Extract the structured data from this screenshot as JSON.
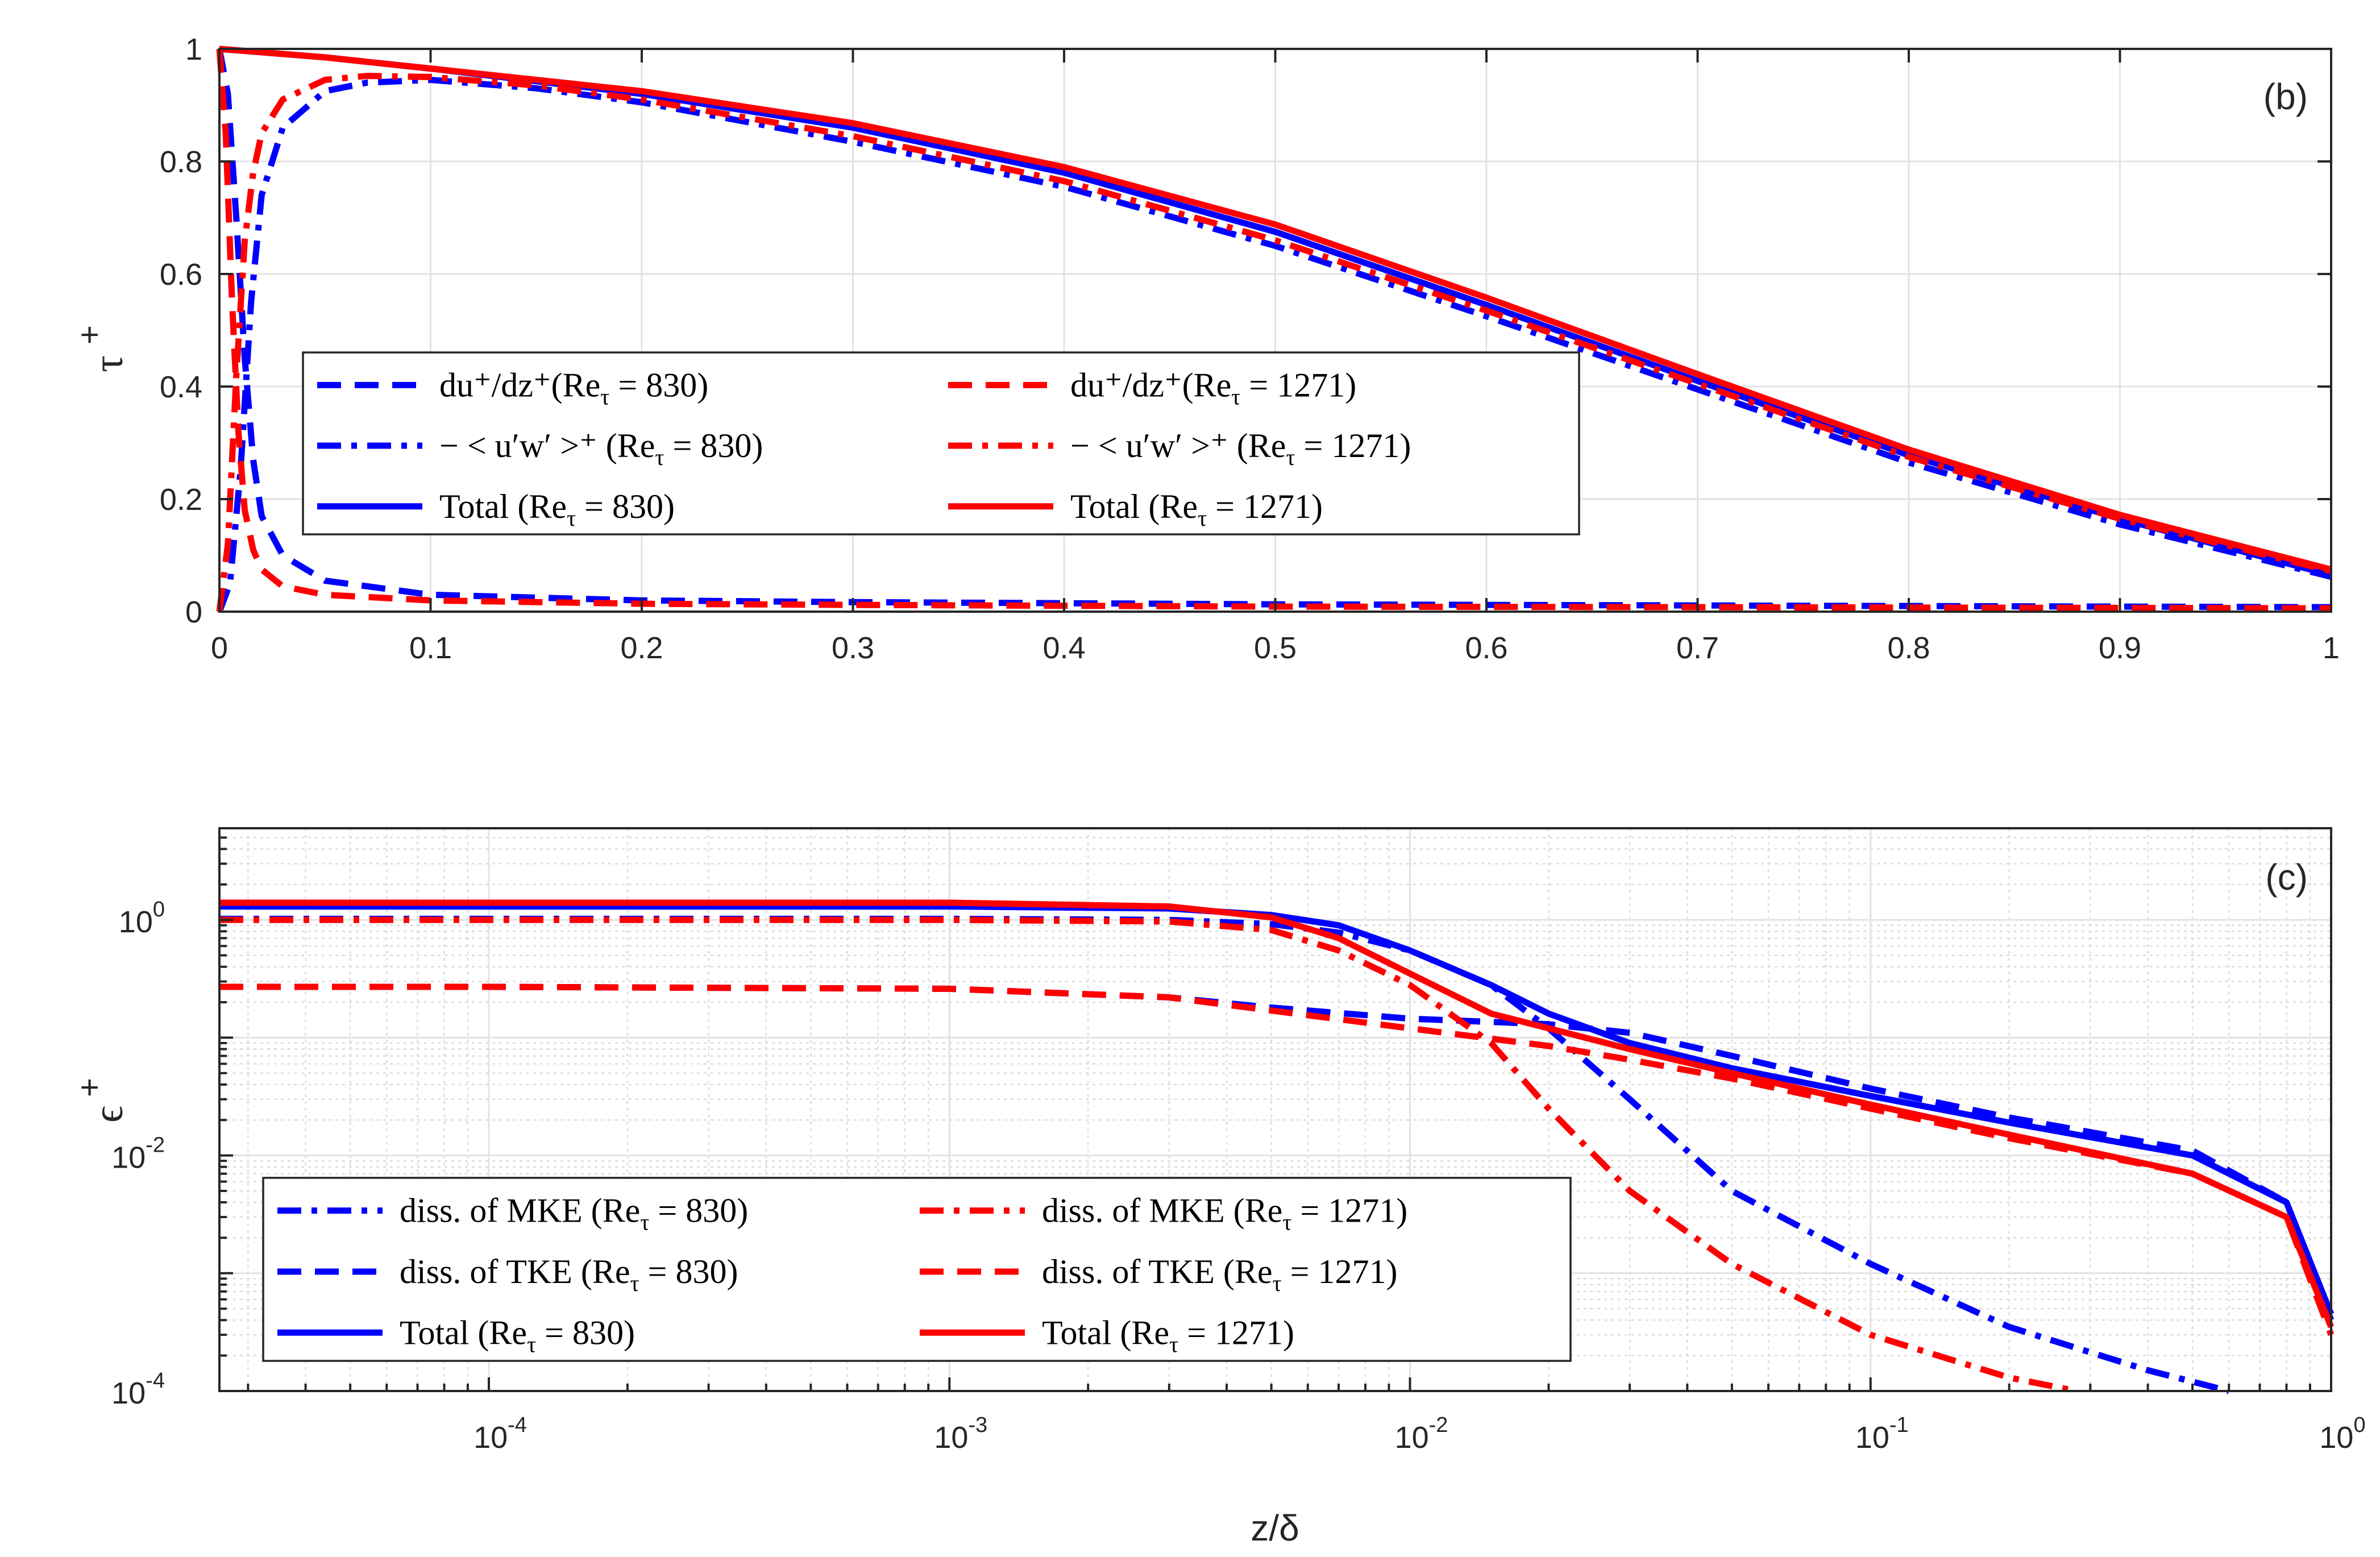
{
  "colors": {
    "re830": "#0000ff",
    "re1271": "#ff0000",
    "axis": "#262626",
    "grid": "#e3e3e3"
  },
  "chart_data": [
    {
      "panel": "(b)",
      "type": "line",
      "ylabel": "τ",
      "ylabel_sup": "+",
      "xlim": [
        0,
        1
      ],
      "ylim": [
        0,
        1
      ],
      "xticks": [
        0,
        0.1,
        0.2,
        0.3,
        0.4,
        0.5,
        0.6,
        0.7,
        0.8,
        0.9,
        1
      ],
      "xticklabels": [
        "0",
        "0.1",
        "0.2",
        "0.3",
        "0.4",
        "0.5",
        "0.6",
        "0.7",
        "0.8",
        "0.9",
        "1"
      ],
      "yticks": [
        0,
        0.2,
        0.4,
        0.6,
        0.8,
        1
      ],
      "yticklabels": [
        "0",
        "0.2",
        "0.4",
        "0.6",
        "0.8",
        "1"
      ],
      "grid": true,
      "legend_position": "center-left",
      "series": [
        {
          "name": "du⁺/dz⁺ (Re_τ = 830)",
          "legend_main": "du⁺/dz⁺(Re",
          "legend_tail": " = 830)",
          "color": "#0000ff",
          "style": "dashed",
          "x": [
            0,
            0.004,
            0.008,
            0.012,
            0.016,
            0.02,
            0.03,
            0.05,
            0.1,
            0.2,
            0.3,
            0.5,
            0.7,
            1.0
          ],
          "y": [
            1.0,
            0.92,
            0.7,
            0.45,
            0.27,
            0.17,
            0.1,
            0.055,
            0.03,
            0.02,
            0.017,
            0.013,
            0.011,
            0.008
          ]
        },
        {
          "name": "-<u'w'>⁺ (Re_τ = 830)",
          "legend_main": "− < u′w′ >⁺ (Re",
          "legend_tail": " = 830)",
          "color": "#0000ff",
          "style": "dashdot",
          "x": [
            0,
            0.005,
            0.01,
            0.015,
            0.02,
            0.03,
            0.05,
            0.07,
            0.1,
            0.15,
            0.2,
            0.3,
            0.4,
            0.5,
            0.6,
            0.7,
            0.8,
            0.9,
            1.0
          ],
          "y": [
            0.0,
            0.05,
            0.25,
            0.55,
            0.74,
            0.86,
            0.925,
            0.94,
            0.945,
            0.93,
            0.905,
            0.835,
            0.755,
            0.65,
            0.525,
            0.395,
            0.265,
            0.155,
            0.062
          ]
        },
        {
          "name": "Total (Re_τ = 830)",
          "legend_main": "Total (Re",
          "legend_tail": " = 830)",
          "color": "#0000ff",
          "style": "solid",
          "x": [
            0,
            0.05,
            0.1,
            0.2,
            0.3,
            0.4,
            0.5,
            0.6,
            0.7,
            0.8,
            0.9,
            1.0
          ],
          "y": [
            1.0,
            0.985,
            0.965,
            0.92,
            0.86,
            0.78,
            0.675,
            0.545,
            0.41,
            0.278,
            0.165,
            0.065
          ]
        },
        {
          "name": "du⁺/dz⁺ (Re_τ = 1271)",
          "legend_main": "du⁺/dz⁺(Re",
          "legend_tail": " = 1271)",
          "color": "#ff0000",
          "style": "dashed",
          "x": [
            0,
            0.003,
            0.006,
            0.009,
            0.012,
            0.016,
            0.02,
            0.03,
            0.05,
            0.1,
            0.2,
            0.3,
            0.5,
            0.7,
            1.0
          ],
          "y": [
            1.0,
            0.85,
            0.55,
            0.32,
            0.18,
            0.11,
            0.075,
            0.045,
            0.03,
            0.02,
            0.014,
            0.012,
            0.009,
            0.008,
            0.006
          ]
        },
        {
          "name": "-<u'w'>⁺ (Re_τ = 1271)",
          "legend_main": "− < u′w′ >⁺ (Re",
          "legend_tail": " = 1271)",
          "color": "#ff0000",
          "style": "dashdot",
          "x": [
            0,
            0.004,
            0.008,
            0.012,
            0.016,
            0.02,
            0.03,
            0.05,
            0.07,
            0.1,
            0.15,
            0.2,
            0.3,
            0.4,
            0.5,
            0.6,
            0.7,
            0.8,
            0.9,
            1.0
          ],
          "y": [
            0.0,
            0.12,
            0.42,
            0.66,
            0.78,
            0.85,
            0.91,
            0.945,
            0.952,
            0.95,
            0.935,
            0.91,
            0.845,
            0.765,
            0.66,
            0.535,
            0.405,
            0.275,
            0.165,
            0.072
          ]
        },
        {
          "name": "Total (Re_τ = 1271)",
          "legend_main": "Total (Re",
          "legend_tail": " = 1271)",
          "color": "#ff0000",
          "style": "solid",
          "x": [
            0,
            0.05,
            0.1,
            0.2,
            0.3,
            0.4,
            0.5,
            0.6,
            0.7,
            0.8,
            0.9,
            1.0
          ],
          "y": [
            1.0,
            0.985,
            0.965,
            0.925,
            0.868,
            0.79,
            0.688,
            0.558,
            0.422,
            0.288,
            0.172,
            0.075
          ]
        }
      ]
    },
    {
      "panel": "(c)",
      "type": "line",
      "xlabel": "z/δ",
      "ylabel": "ϵ",
      "ylabel_sup": "+",
      "xscale": "log",
      "yscale": "log",
      "xlim": [
        2.6e-05,
        1
      ],
      "ylim": [
        0.0001,
        6
      ],
      "xticks": [
        0.0001,
        0.001,
        0.01,
        0.1,
        1
      ],
      "xticklabels": [
        [
          "10",
          "-4"
        ],
        [
          "10",
          "-3"
        ],
        [
          "10",
          "-2"
        ],
        [
          "10",
          "-1"
        ],
        [
          "10",
          "0"
        ]
      ],
      "yticks": [
        0.0001,
        0.01,
        1
      ],
      "yticklabels": [
        [
          "10",
          "-4"
        ],
        [
          "10",
          "-2"
        ],
        [
          "10",
          "0"
        ]
      ],
      "grid": true,
      "legend_position": "bottom-left",
      "series": [
        {
          "name": "diss. of MKE (Re_τ = 830)",
          "legend_main": "diss. of MKE (Re",
          "legend_tail": " = 830)",
          "color": "#0000ff",
          "style": "dashdot",
          "x": [
            2.6e-05,
            0.001,
            0.003,
            0.005,
            0.007,
            0.01,
            0.015,
            0.02,
            0.03,
            0.05,
            0.1,
            0.2,
            0.4,
            0.6
          ],
          "y": [
            1.02,
            1.02,
            1.0,
            0.92,
            0.78,
            0.55,
            0.28,
            0.12,
            0.03,
            0.005,
            0.0012,
            0.00035,
            0.00015,
            0.0001
          ]
        },
        {
          "name": "diss. of TKE (Re_τ = 830)",
          "legend_main": "diss. of TKE (Re",
          "legend_tail": " = 830)",
          "color": "#0000ff",
          "style": "dashed",
          "x": [
            2.6e-05,
            0.0001,
            0.001,
            0.003,
            0.005,
            0.01,
            0.02,
            0.03,
            0.05,
            0.1,
            0.2,
            0.5,
            0.8,
            1.0
          ],
          "y": [
            0.27,
            0.27,
            0.26,
            0.22,
            0.18,
            0.145,
            0.13,
            0.11,
            0.07,
            0.037,
            0.021,
            0.011,
            0.004,
            0.0004
          ]
        },
        {
          "name": "Total (Re_τ = 830)",
          "legend_main": "Total (Re",
          "legend_tail": " = 830)",
          "color": "#0000ff",
          "style": "solid",
          "x": [
            2.6e-05,
            0.001,
            0.003,
            0.005,
            0.007,
            0.01,
            0.015,
            0.02,
            0.03,
            0.05,
            0.1,
            0.2,
            0.5,
            0.8,
            1.0
          ],
          "y": [
            1.3,
            1.3,
            1.25,
            1.1,
            0.9,
            0.55,
            0.28,
            0.16,
            0.09,
            0.055,
            0.032,
            0.019,
            0.01,
            0.004,
            0.00045
          ]
        },
        {
          "name": "diss. of MKE (Re_τ = 1271)",
          "legend_main": "diss. of MKE (Re",
          "legend_tail": " = 1271)",
          "color": "#ff0000",
          "style": "dashdot",
          "x": [
            2.6e-05,
            0.001,
            0.003,
            0.005,
            0.007,
            0.01,
            0.015,
            0.02,
            0.03,
            0.05,
            0.1,
            0.2,
            0.28
          ],
          "y": [
            1.0,
            1.0,
            0.97,
            0.82,
            0.55,
            0.28,
            0.09,
            0.025,
            0.005,
            0.0012,
            0.0003,
            0.00013,
            0.0001
          ]
        },
        {
          "name": "diss. of TKE (Re_τ = 1271)",
          "legend_main": "diss. of TKE (Re",
          "legend_tail": " = 1271)",
          "color": "#ff0000",
          "style": "dashed",
          "x": [
            2.6e-05,
            0.0001,
            0.001,
            0.003,
            0.005,
            0.01,
            0.02,
            0.03,
            0.05,
            0.1,
            0.2,
            0.5,
            0.8,
            1.0
          ],
          "y": [
            0.27,
            0.27,
            0.26,
            0.22,
            0.17,
            0.12,
            0.085,
            0.065,
            0.045,
            0.025,
            0.014,
            0.007,
            0.003,
            0.0003
          ]
        },
        {
          "name": "Total (Re_τ = 1271)",
          "legend_main": "Total (Re",
          "legend_tail": " = 1271)",
          "color": "#ff0000",
          "style": "solid",
          "x": [
            2.6e-05,
            0.001,
            0.003,
            0.005,
            0.007,
            0.01,
            0.015,
            0.02,
            0.03,
            0.05,
            0.1,
            0.2,
            0.5,
            0.8,
            1.0
          ],
          "y": [
            1.4,
            1.4,
            1.3,
            1.05,
            0.7,
            0.35,
            0.16,
            0.12,
            0.08,
            0.05,
            0.027,
            0.015,
            0.007,
            0.003,
            0.00035
          ]
        }
      ]
    }
  ]
}
